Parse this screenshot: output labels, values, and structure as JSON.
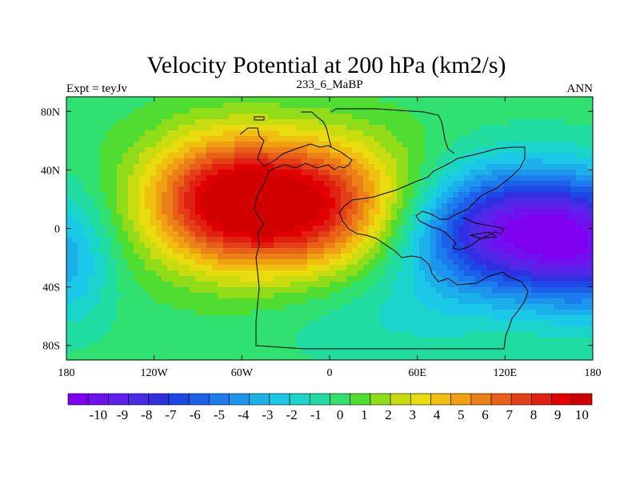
{
  "chart_data": {
    "type": "heatmap",
    "title": "Velocity Potential at 200 hPa (km2/s)",
    "subtitle_left": "Expt = teyJv",
    "subtitle_center": "233_6_MaBP",
    "subtitle_right": "ANN",
    "x_ticks": [
      "180",
      "120W",
      "60W",
      "0",
      "60E",
      "120E",
      "180"
    ],
    "x_tick_values": [
      -180,
      -120,
      -60,
      0,
      60,
      120,
      180
    ],
    "y_ticks": [
      "80N",
      "40N",
      "0",
      "40S",
      "80S"
    ],
    "y_tick_values": [
      80,
      40,
      0,
      -40,
      -80
    ],
    "xlim": [
      -180,
      180
    ],
    "ylim": [
      -90,
      90
    ],
    "colorbar_labels": [
      "-10",
      "-9",
      "-8",
      "-7",
      "-6",
      "-5",
      "-4",
      "-3",
      "-2",
      "-1",
      "0",
      "1",
      "2",
      "3",
      "4",
      "5",
      "6",
      "7",
      "8",
      "9",
      "10"
    ],
    "colorbar_colors": [
      "#8000f0",
      "#7010ee",
      "#6020ec",
      "#4a2be8",
      "#3030e0",
      "#1c48e6",
      "#1c60ea",
      "#1c7cee",
      "#1c96ec",
      "#1cb0ea",
      "#1cc8e8",
      "#1ad4cc",
      "#20dca0",
      "#30e070",
      "#50dc30",
      "#90dc18",
      "#c8dc10",
      "#e8dc10",
      "#f0c010",
      "#f0a010",
      "#ec8018",
      "#e86018",
      "#e44018",
      "#e02010",
      "#e00000",
      "#d00000"
    ],
    "field_features": [
      {
        "lon": -30,
        "lat": 20,
        "value": 10
      },
      {
        "lon": 130,
        "lat": 0,
        "value": -9
      },
      {
        "lon": 175,
        "lat": -25,
        "value": -6
      },
      {
        "lon": -178,
        "lat": -15,
        "value": -5
      }
    ],
    "field_range": [
      -10,
      10
    ]
  }
}
